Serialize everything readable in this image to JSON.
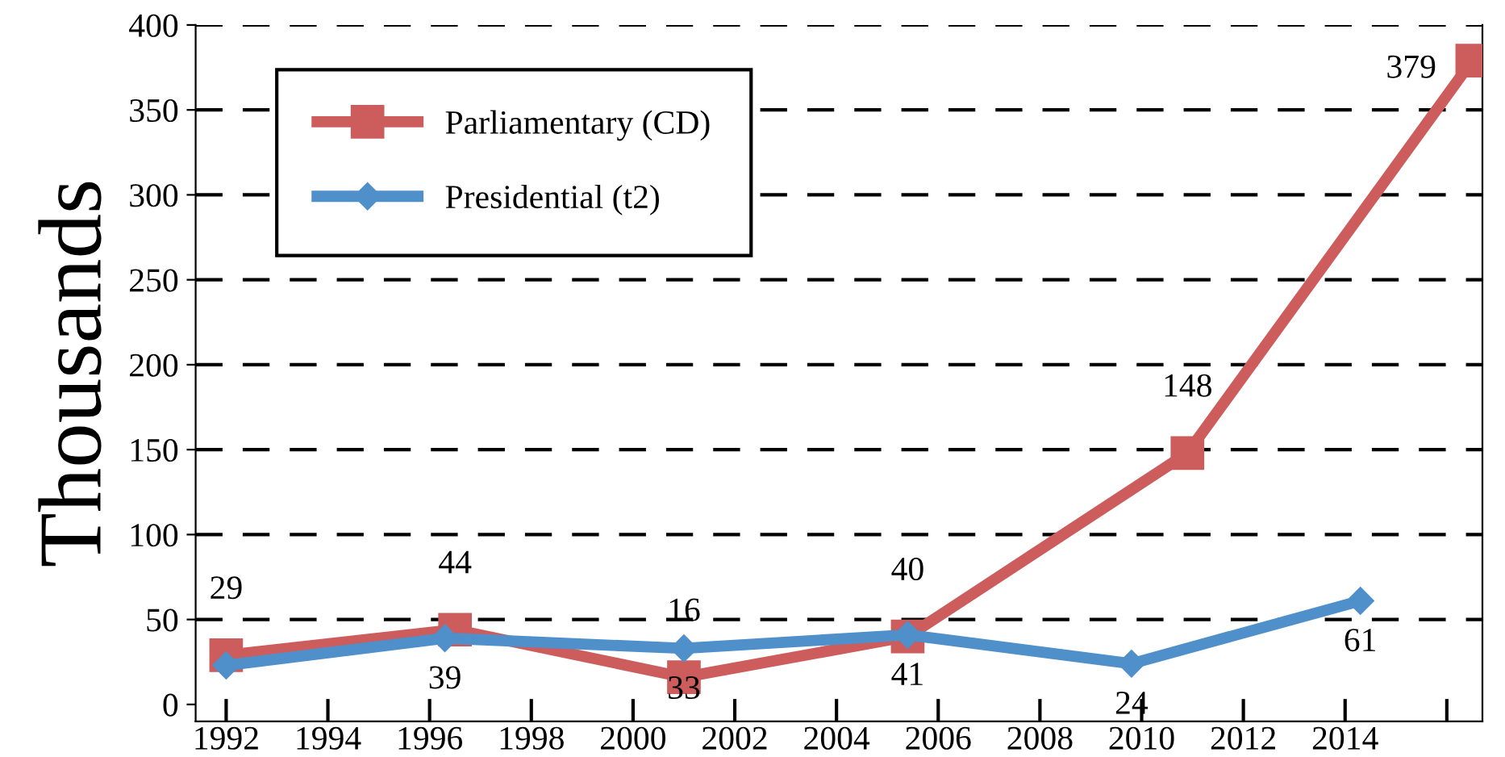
{
  "chart_data": {
    "type": "line",
    "ylabel": "Thousands",
    "xlim": [
      1991.4,
      2016.7
    ],
    "xticks": [
      1992,
      1994,
      1996,
      1998,
      2000,
      2002,
      2004,
      2006,
      2008,
      2010,
      2012,
      2014,
      {
        "value": 2016,
        "label": null
      }
    ],
    "ylim": [
      -10,
      400
    ],
    "yticks": [
      0,
      50,
      100,
      150,
      200,
      250,
      300,
      350,
      400
    ],
    "grid": "y",
    "legend": "top left",
    "series": [
      {
        "name": "Parliamentary (CD)",
        "color": "#cd5c5c",
        "marker": "square",
        "x": [
          1992,
          1996.5,
          2001,
          2005.4,
          2010.9,
          2016.5
        ],
        "values": [
          29,
          44,
          16,
          40,
          148,
          379
        ],
        "value_labels": [
          "29",
          "44",
          "16",
          "40",
          "148",
          "379"
        ]
      },
      {
        "name": "Presidential (t2)",
        "color": "#4f8fca",
        "marker": "diamond",
        "x": [
          1992,
          1996.3,
          2001,
          2005.4,
          2009.8,
          2014.3
        ],
        "values": [
          23,
          39,
          33,
          41,
          24,
          61
        ],
        "value_labels": [
          null,
          "39",
          "33",
          "41",
          "24",
          "61"
        ]
      }
    ]
  }
}
